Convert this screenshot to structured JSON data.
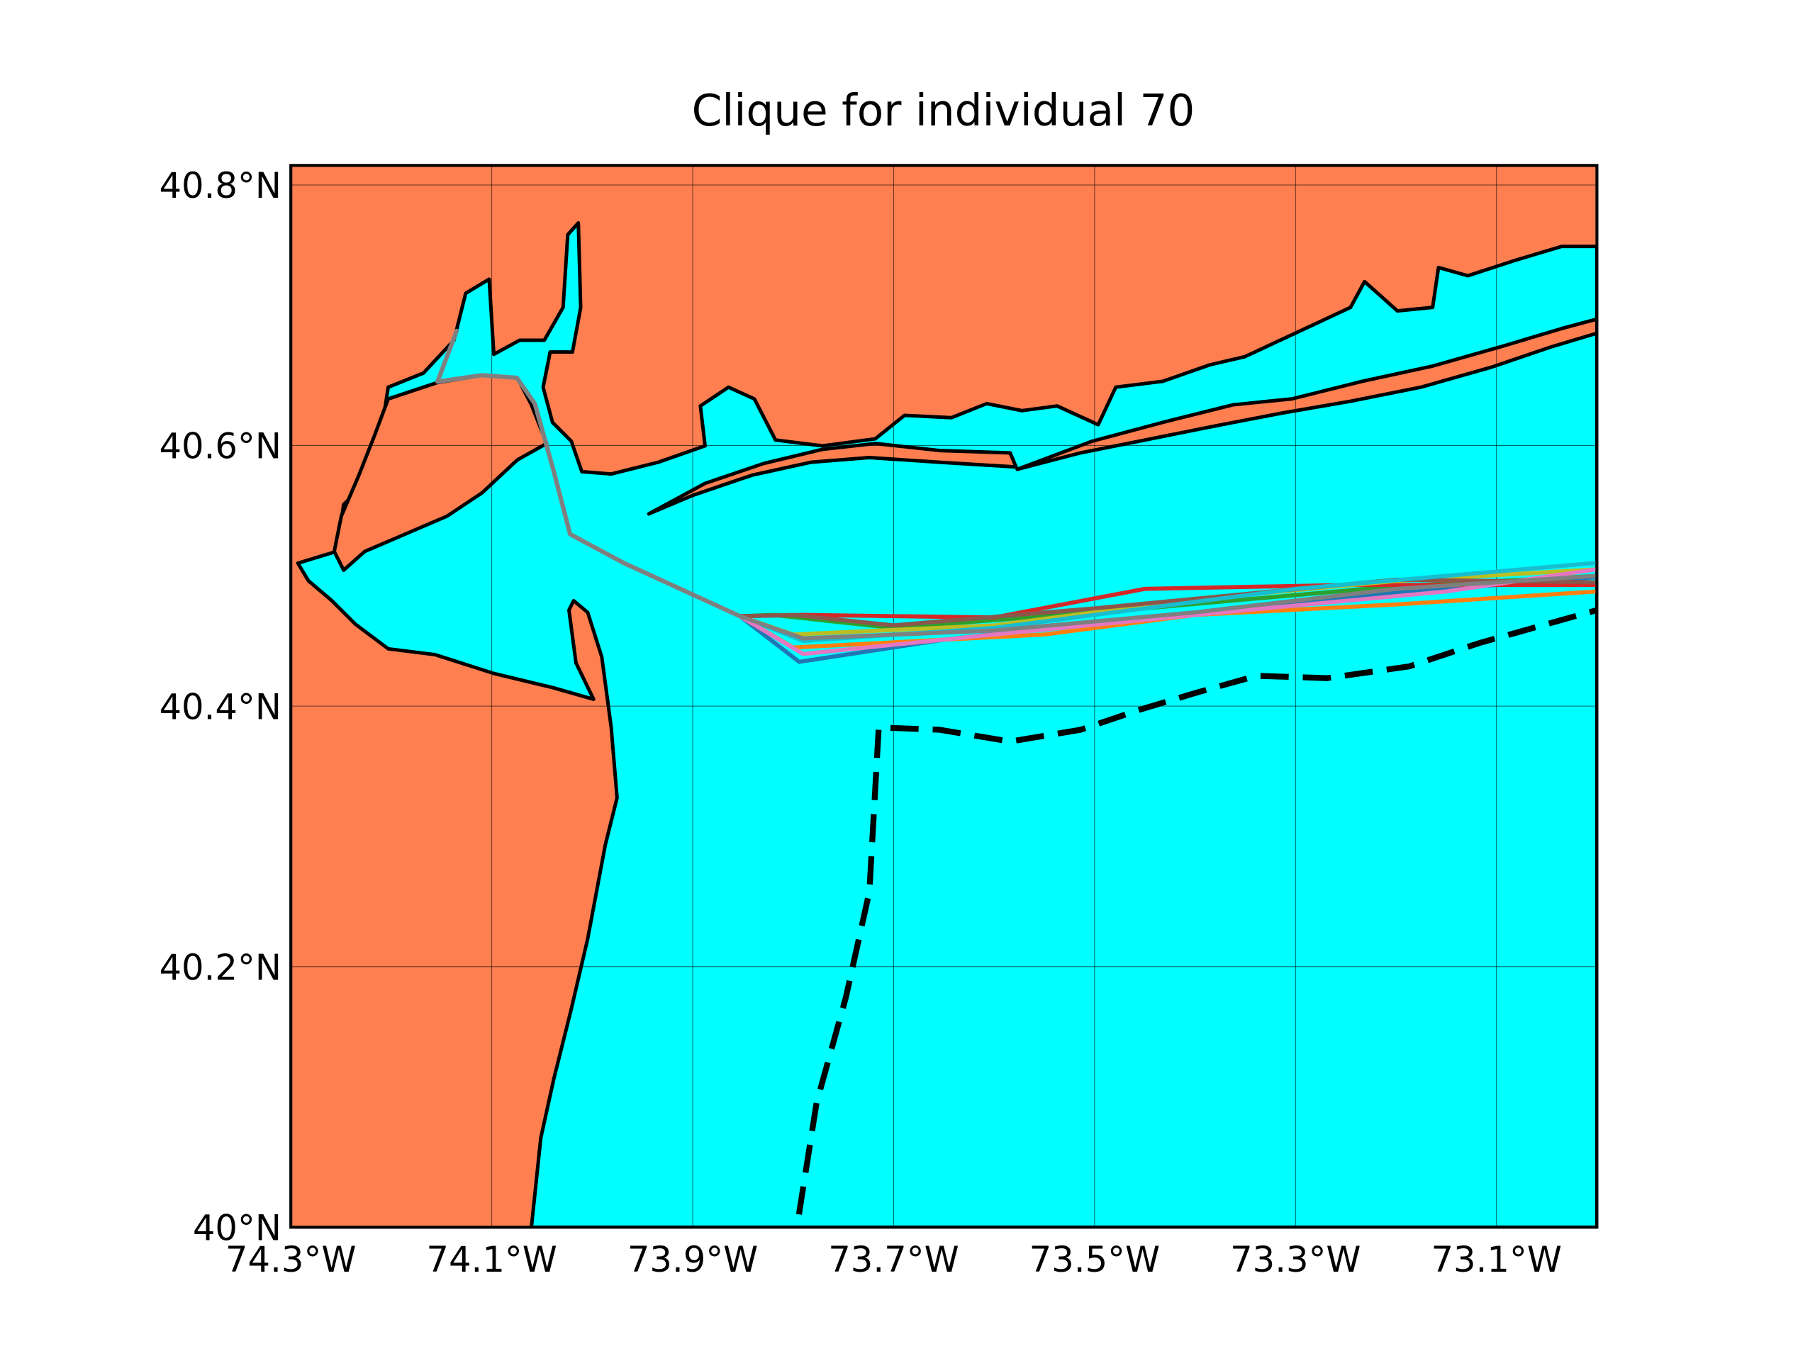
{
  "chart_data": {
    "type": "map",
    "title": "Clique for individual 70",
    "xlim": [
      -74.3,
      -73.0
    ],
    "ylim": [
      40.0,
      40.815
    ],
    "xticks": [
      {
        "value": -74.3,
        "label": "74.3°W"
      },
      {
        "value": -74.1,
        "label": "74.1°W"
      },
      {
        "value": -73.9,
        "label": "73.9°W"
      },
      {
        "value": -73.7,
        "label": "73.7°W"
      },
      {
        "value": -73.5,
        "label": "73.5°W"
      },
      {
        "value": -73.3,
        "label": "73.3°W"
      },
      {
        "value": -73.1,
        "label": "73.1°W"
      }
    ],
    "yticks": [
      {
        "value": 40.0,
        "label": "40°N"
      },
      {
        "value": 40.2,
        "label": "40.2°N"
      },
      {
        "value": 40.4,
        "label": "40.4°N"
      },
      {
        "value": 40.6,
        "label": "40.6°N"
      },
      {
        "value": 40.8,
        "label": "40.8°N"
      }
    ],
    "grid": true,
    "land_color": "#ff7f50",
    "water_color": "#00ffff",
    "series": [
      {
        "color": "#1f77b4",
        "x": [
          -74.135,
          -74.154,
          -74.11,
          -74.075,
          -74.057,
          -74.039,
          -74.022,
          -73.969,
          -73.853,
          -73.794,
          -73.65,
          -73.45,
          -73.2,
          -73.0
        ],
        "y": [
          40.688,
          40.649,
          40.654,
          40.652,
          40.632,
          40.582,
          40.532,
          40.51,
          40.469,
          40.434,
          40.451,
          40.468,
          40.487,
          40.499
        ]
      },
      {
        "color": "#ff7f0e",
        "x": [
          -74.135,
          -74.154,
          -74.11,
          -74.075,
          -74.057,
          -74.039,
          -74.022,
          -73.969,
          -73.853,
          -73.8,
          -73.55,
          -73.4,
          -73.2,
          -73.0
        ],
        "y": [
          40.688,
          40.649,
          40.654,
          40.652,
          40.632,
          40.582,
          40.532,
          40.51,
          40.469,
          40.445,
          40.455,
          40.47,
          40.478,
          40.488
        ]
      },
      {
        "color": "#2ca02c",
        "x": [
          -74.135,
          -74.154,
          -74.11,
          -74.075,
          -74.057,
          -74.039,
          -74.022,
          -73.969,
          -73.853,
          -73.82,
          -73.7,
          -73.45,
          -73.2,
          -73.0
        ],
        "y": [
          40.688,
          40.649,
          40.654,
          40.652,
          40.632,
          40.582,
          40.532,
          40.51,
          40.469,
          40.47,
          40.46,
          40.475,
          40.492,
          40.5
        ]
      },
      {
        "color": "#d62728",
        "x": [
          -74.135,
          -74.154,
          -74.11,
          -74.075,
          -74.057,
          -74.039,
          -74.022,
          -73.969,
          -73.853,
          -73.79,
          -73.6,
          -73.45,
          -73.25,
          -73.0
        ],
        "y": [
          40.688,
          40.649,
          40.654,
          40.652,
          40.632,
          40.582,
          40.532,
          40.51,
          40.469,
          40.47,
          40.468,
          40.49,
          40.493,
          40.493
        ]
      },
      {
        "color": "#bcbd22",
        "x": [
          -74.135,
          -74.154,
          -74.11,
          -74.075,
          -74.057,
          -74.039,
          -74.022,
          -73.969,
          -73.853,
          -73.8,
          -73.6,
          -73.4,
          -73.2,
          -73.0
        ],
        "y": [
          40.688,
          40.649,
          40.654,
          40.652,
          40.632,
          40.582,
          40.532,
          40.51,
          40.469,
          40.455,
          40.462,
          40.482,
          40.496,
          40.505
        ]
      },
      {
        "color": "#8c564b",
        "x": [
          -74.135,
          -74.154,
          -74.11,
          -74.075,
          -74.057,
          -74.039,
          -74.022,
          -73.969,
          -73.853,
          -73.8,
          -73.7,
          -73.5,
          -73.2,
          -73.0
        ],
        "y": [
          40.688,
          40.649,
          40.654,
          40.652,
          40.632,
          40.582,
          40.532,
          40.51,
          40.469,
          40.47,
          40.462,
          40.475,
          40.497,
          40.495
        ]
      },
      {
        "color": "#17becf",
        "x": [
          -74.135,
          -74.154,
          -74.11,
          -74.075,
          -74.057,
          -74.039,
          -74.022,
          -73.969,
          -73.853,
          -73.79,
          -73.6,
          -73.3,
          -73.0
        ],
        "y": [
          40.688,
          40.649,
          40.654,
          40.652,
          40.632,
          40.582,
          40.532,
          40.51,
          40.469,
          40.45,
          40.46,
          40.49,
          40.51
        ]
      },
      {
        "color": "#e377c2",
        "x": [
          -74.135,
          -74.154,
          -74.11,
          -74.075,
          -74.057,
          -74.039,
          -74.022,
          -73.969,
          -73.853,
          -73.79,
          -73.6,
          -73.4,
          -73.15,
          -73.0
        ],
        "y": [
          40.688,
          40.649,
          40.654,
          40.652,
          40.632,
          40.582,
          40.532,
          40.51,
          40.469,
          40.44,
          40.455,
          40.47,
          40.488,
          40.505
        ]
      },
      {
        "color": "#7f7f7f",
        "x": [
          -74.135,
          -74.154,
          -74.11,
          -74.075,
          -74.057,
          -74.039,
          -74.022,
          -73.969,
          -73.853,
          -73.79,
          -73.6,
          -73.4,
          -73.2,
          -73.0
        ],
        "y": [
          40.688,
          40.649,
          40.654,
          40.652,
          40.632,
          40.582,
          40.532,
          40.51,
          40.469,
          40.452,
          40.458,
          40.472,
          40.49,
          40.5
        ]
      }
    ]
  }
}
